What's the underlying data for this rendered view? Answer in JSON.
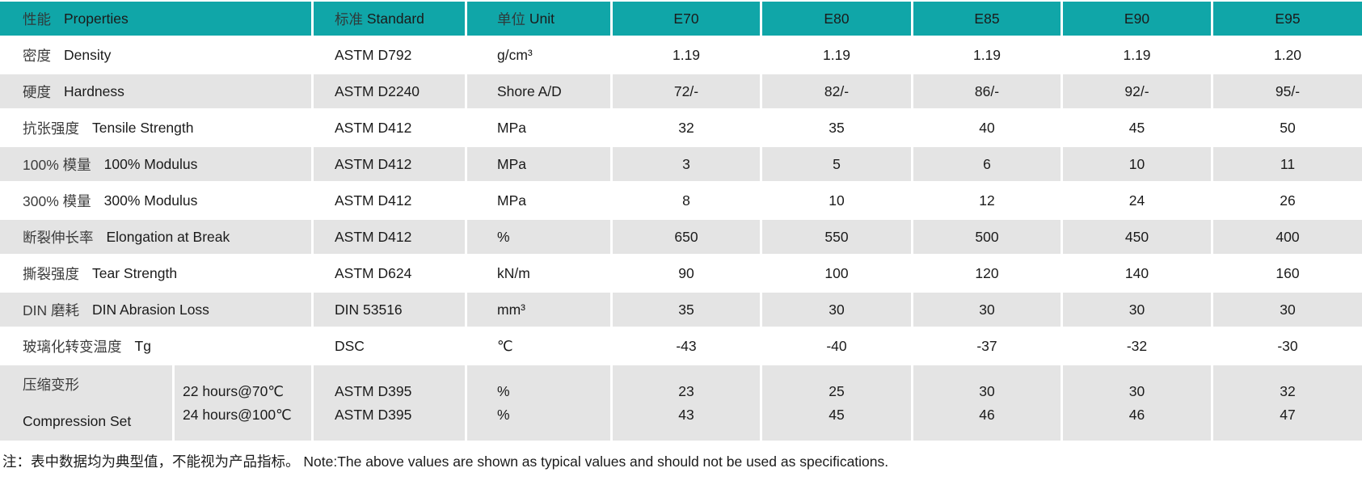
{
  "theme": {
    "header_bg": "#10a6a8",
    "row_alt_bg": "#e4e4e4",
    "row_bg": "#ffffff",
    "text_color": "#1b1b1b"
  },
  "table": {
    "headers": {
      "properties_zh": "性能",
      "properties_en": "Properties",
      "standard_zh": "标准",
      "standard_en": "Standard",
      "unit_zh": "单位",
      "unit_en": "Unit",
      "grades": [
        "E70",
        "E80",
        "E85",
        "E90",
        "E95"
      ]
    },
    "rows": [
      {
        "name_zh": "密度",
        "name_en": "Density",
        "standard": "ASTM D792",
        "unit": "g/cm³",
        "values": [
          "1.19",
          "1.19",
          "1.19",
          "1.19",
          "1.20"
        ]
      },
      {
        "name_zh": "硬度",
        "name_en": "Hardness",
        "standard": "ASTM D2240",
        "unit": "Shore A/D",
        "values": [
          "72/-",
          "82/-",
          "86/-",
          "92/-",
          "95/-"
        ]
      },
      {
        "name_zh": "抗张强度",
        "name_en": "Tensile Strength",
        "standard": "ASTM D412",
        "unit": "MPa",
        "values": [
          "32",
          "35",
          "40",
          "45",
          "50"
        ]
      },
      {
        "name_zh": "100% 模量",
        "name_en": "100% Modulus",
        "standard": "ASTM D412",
        "unit": "MPa",
        "values": [
          "3",
          "5",
          "6",
          "10",
          "11"
        ]
      },
      {
        "name_zh": "300% 模量",
        "name_en": "300% Modulus",
        "standard": "ASTM D412",
        "unit": "MPa",
        "values": [
          "8",
          "10",
          "12",
          "24",
          "26"
        ]
      },
      {
        "name_zh": "断裂伸长率",
        "name_en": "Elongation at Break",
        "standard": "ASTM D412",
        "unit": "%",
        "values": [
          "650",
          "550",
          "500",
          "450",
          "400"
        ]
      },
      {
        "name_zh": "撕裂强度",
        "name_en": "Tear Strength",
        "standard": "ASTM D624",
        "unit": "kN/m",
        "values": [
          "90",
          "100",
          "120",
          "140",
          "160"
        ]
      },
      {
        "name_zh": "DIN 磨耗",
        "name_en": "DIN Abrasion Loss",
        "standard": "DIN 53516",
        "unit": "mm³",
        "values": [
          "35",
          "30",
          "30",
          "30",
          "30"
        ]
      },
      {
        "name_zh": "玻璃化转变温度",
        "name_en": "Tg",
        "standard": "DSC",
        "unit": "℃",
        "values": [
          "-43",
          "-40",
          "-37",
          "-32",
          "-30"
        ]
      }
    ],
    "compression": {
      "name_zh": "压缩变形",
      "name_en": "Compression Set",
      "sub_rows": [
        {
          "condition": "22 hours@70℃",
          "standard": "ASTM D395",
          "unit": "%",
          "values": [
            "23",
            "25",
            "30",
            "30",
            "32"
          ]
        },
        {
          "condition": "24 hours@100℃",
          "standard": "ASTM D395",
          "unit": "%",
          "values": [
            "43",
            "45",
            "46",
            "46",
            "47"
          ]
        }
      ]
    }
  },
  "note": "注：表中数据均为典型值，不能视为产品指标。 Note:The above values are shown as typical values and should not be used as specifications."
}
